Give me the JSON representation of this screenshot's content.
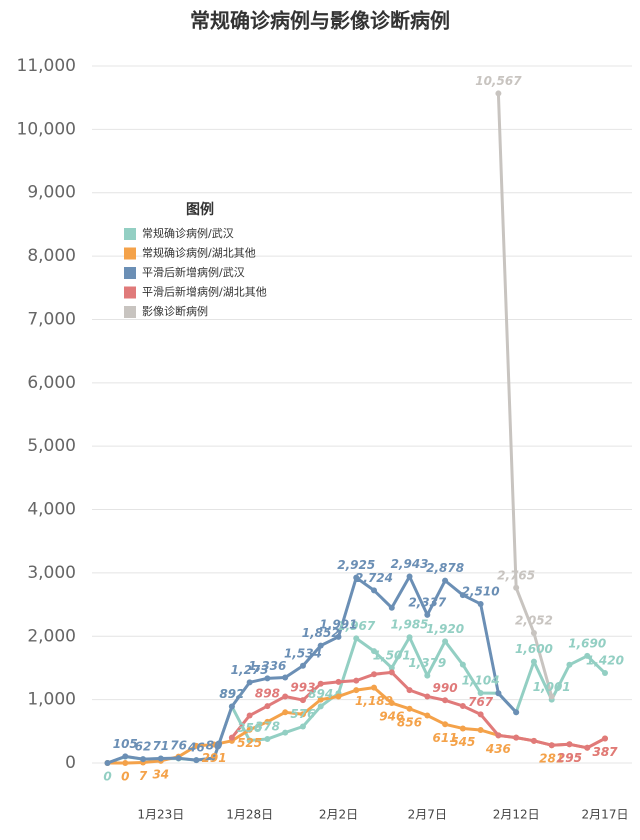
{
  "chart_data": {
    "type": "line",
    "title": "常规确诊病例与影像诊断病例",
    "legend_title": "图例",
    "legend": "upper left",
    "grid": true,
    "categories": [
      null,
      null,
      null,
      "1月23日",
      null,
      null,
      null,
      null,
      "1月28日",
      null,
      null,
      null,
      null,
      "2月2日",
      null,
      null,
      null,
      null,
      "2月7日",
      null,
      null,
      null,
      null,
      "2月12日",
      null,
      null,
      null,
      null,
      "2月17日"
    ],
    "ylim": [
      0,
      11000
    ],
    "yticks": [
      0,
      {
        "value": 1000,
        "label": "1,000"
      },
      {
        "value": 2000,
        "label": "2,000"
      },
      {
        "value": 3000,
        "label": "3,000"
      },
      {
        "value": 4000,
        "label": "4,000"
      },
      {
        "value": 5000,
        "label": "5,000"
      },
      {
        "value": 6000,
        "label": "6,000"
      },
      {
        "value": 7000,
        "label": "7,000"
      },
      {
        "value": 8000,
        "label": "8,000"
      },
      {
        "value": 9000,
        "label": "9,000"
      },
      {
        "value": 10000,
        "label": "10,000"
      },
      {
        "value": 11000,
        "label": "11,000"
      }
    ],
    "series": [
      {
        "name": "常规确诊病例/武汉",
        "color": "#93cfc3",
        "values": [
          0,
          100,
          60,
          70,
          70,
          46,
          80,
          892,
          356,
          378,
          480,
          576,
          894,
          1100,
          1967,
          1766,
          1501,
          1985,
          1379,
          1920,
          1552,
          1104,
          1100,
          800,
          1600,
          1001,
          1550,
          1690,
          1420
        ],
        "value_labels": [
          "0",
          null,
          null,
          null,
          null,
          null,
          null,
          "892",
          "356",
          "378",
          null,
          "576",
          "894",
          null,
          "1,967",
          null,
          "1,501",
          "1,985",
          "1,379",
          "1,920",
          null,
          "1,104",
          null,
          null,
          "1,600",
          "1,001",
          null,
          "1,690",
          "1,420"
        ]
      },
      {
        "name": "常规确诊病例/湖北其他",
        "color": "#f4a24a",
        "values": [
          0,
          0,
          7,
          34,
          100,
          270,
          291,
          350,
          525,
          650,
          800,
          770,
          1000,
          1050,
          1150,
          1189,
          946,
          856,
          750,
          611,
          545,
          520,
          436,
          400,
          350,
          281,
          295,
          240,
          387
        ],
        "value_labels": [
          null,
          "0",
          "7",
          "34",
          null,
          null,
          "291",
          null,
          "525",
          null,
          null,
          null,
          null,
          null,
          null,
          "1,189",
          "946",
          "856",
          null,
          "611",
          "545",
          null,
          "436",
          null,
          null,
          "281",
          "295",
          null,
          "387"
        ]
      },
      {
        "name": "平滑后新增病例/武汉",
        "color": "#6b8fb5",
        "values": [
          0,
          105,
          62,
          71,
          76,
          46,
          80,
          892,
          1273,
          1336,
          1350,
          1534,
          1852,
          1991,
          2925,
          2724,
          2450,
          2943,
          2337,
          2878,
          2650,
          2510,
          1100,
          800,
          null,
          null,
          null,
          null,
          null
        ],
        "value_labels": [
          null,
          "105",
          "62",
          "71",
          "76",
          "46",
          "80",
          "892",
          "1,273",
          "1,336",
          null,
          "1,534",
          "1,852",
          "1,991",
          "2,925",
          "2,724",
          null,
          "2,943",
          "2,337",
          "2,878",
          null,
          "2,510",
          null,
          null,
          null,
          null,
          null,
          null,
          null
        ]
      },
      {
        "name": "平滑后新增病例/湖北其他",
        "color": "#e07a7a",
        "values": [
          null,
          null,
          null,
          null,
          null,
          null,
          null,
          400,
          750,
          898,
          1050,
          993,
          1250,
          1280,
          1300,
          1400,
          1430,
          1150,
          1050,
          990,
          900,
          767,
          436,
          400,
          350,
          281,
          295,
          240,
          387
        ],
        "value_labels": [
          null,
          null,
          null,
          null,
          null,
          null,
          null,
          null,
          null,
          "898",
          null,
          "993",
          null,
          null,
          null,
          null,
          null,
          null,
          null,
          "990",
          null,
          "767",
          null,
          null,
          null,
          null,
          "295",
          null,
          "387"
        ]
      },
      {
        "name": "影像诊断病例",
        "color": "#c8c4c0",
        "values": [
          null,
          null,
          null,
          null,
          null,
          null,
          null,
          null,
          null,
          null,
          null,
          null,
          null,
          null,
          null,
          null,
          null,
          null,
          null,
          null,
          null,
          null,
          10567,
          2765,
          2052,
          1050,
          null,
          null,
          null
        ],
        "value_labels": [
          null,
          null,
          null,
          null,
          null,
          null,
          null,
          null,
          null,
          null,
          null,
          null,
          null,
          null,
          null,
          null,
          null,
          null,
          null,
          null,
          null,
          null,
          "10,567",
          "2,765",
          "2,052",
          null,
          null,
          null,
          null
        ]
      }
    ]
  }
}
